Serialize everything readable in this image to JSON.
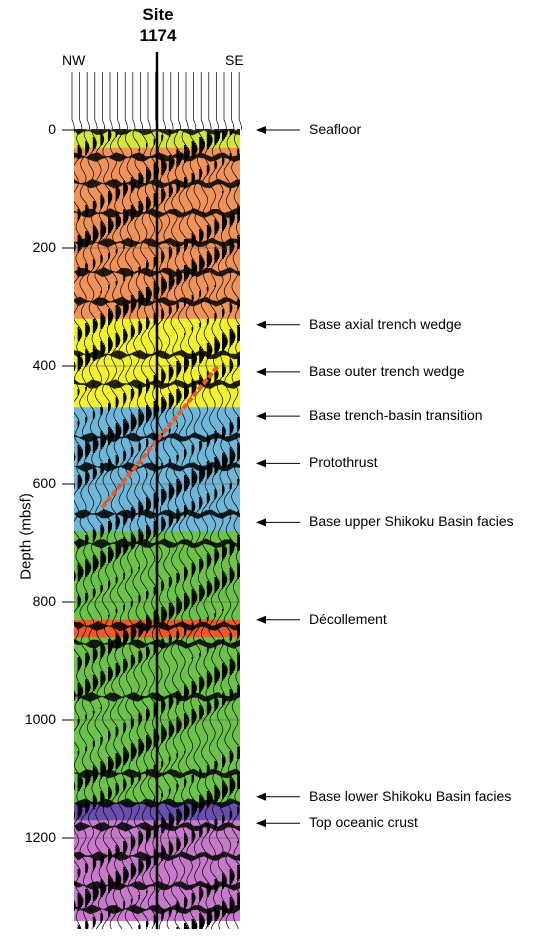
{
  "site": {
    "line1": "Site",
    "line2": "1174"
  },
  "directions": {
    "left": "NW",
    "right": "SE"
  },
  "y_axis": {
    "label": "Depth (mbsf)",
    "min": 0,
    "max": 1340
  },
  "ticks": [
    {
      "depth": 0,
      "label": "0"
    },
    {
      "depth": 200,
      "label": "200"
    },
    {
      "depth": 400,
      "label": "400"
    },
    {
      "depth": 600,
      "label": "600"
    },
    {
      "depth": 800,
      "label": "800"
    },
    {
      "depth": 1000,
      "label": "1000"
    },
    {
      "depth": 1200,
      "label": "1200"
    }
  ],
  "units": [
    {
      "name": "trench-wedge-top",
      "from": 0,
      "to": 30,
      "color": "#d4e63a"
    },
    {
      "name": "trench-wedge",
      "from": 30,
      "to": 320,
      "color": "#f0935a"
    },
    {
      "name": "outer-trench-wedge",
      "from": 320,
      "to": 470,
      "color": "#f2f230"
    },
    {
      "name": "trench-basin-transition",
      "from": 470,
      "to": 680,
      "color": "#6fb6d8"
    },
    {
      "name": "upper-shikoku",
      "from": 680,
      "to": 830,
      "color": "#6cc24a"
    },
    {
      "name": "decollement-zone",
      "from": 830,
      "to": 860,
      "color": "#f05a28"
    },
    {
      "name": "lower-shikoku",
      "from": 860,
      "to": 1140,
      "color": "#6cc24a"
    },
    {
      "name": "basal-unit",
      "from": 1140,
      "to": 1170,
      "color": "#6a4fb0"
    },
    {
      "name": "oceanic-crust",
      "from": 1170,
      "to": 1340,
      "color": "#c77ac9"
    }
  ],
  "protothrust_color": "#f05a28",
  "horizons": [
    {
      "name": "seafloor",
      "label": "Seafloor",
      "depth": 0
    },
    {
      "name": "base-axial-trench-wedge",
      "label": "Base axial trench wedge",
      "depth": 330
    },
    {
      "name": "base-outer-trench-wedge",
      "label": "Base outer trench wedge",
      "depth": 410
    },
    {
      "name": "base-trench-basin-transition",
      "label": "Base trench-basin transition",
      "depth": 485
    },
    {
      "name": "protothrust",
      "label": "Protothrust",
      "depth": 565
    },
    {
      "name": "base-upper-shikoku-basin-facies",
      "label": "Base upper Shikoku Basin facies",
      "depth": 665
    },
    {
      "name": "decollement",
      "label": "Décollement",
      "depth": 830
    },
    {
      "name": "base-lower-shikoku-basin-facies",
      "label": "Base lower Shikoku Basin facies",
      "depth": 1130
    },
    {
      "name": "top-oceanic-crust",
      "label": "Top oceanic crust",
      "depth": 1175
    }
  ]
}
